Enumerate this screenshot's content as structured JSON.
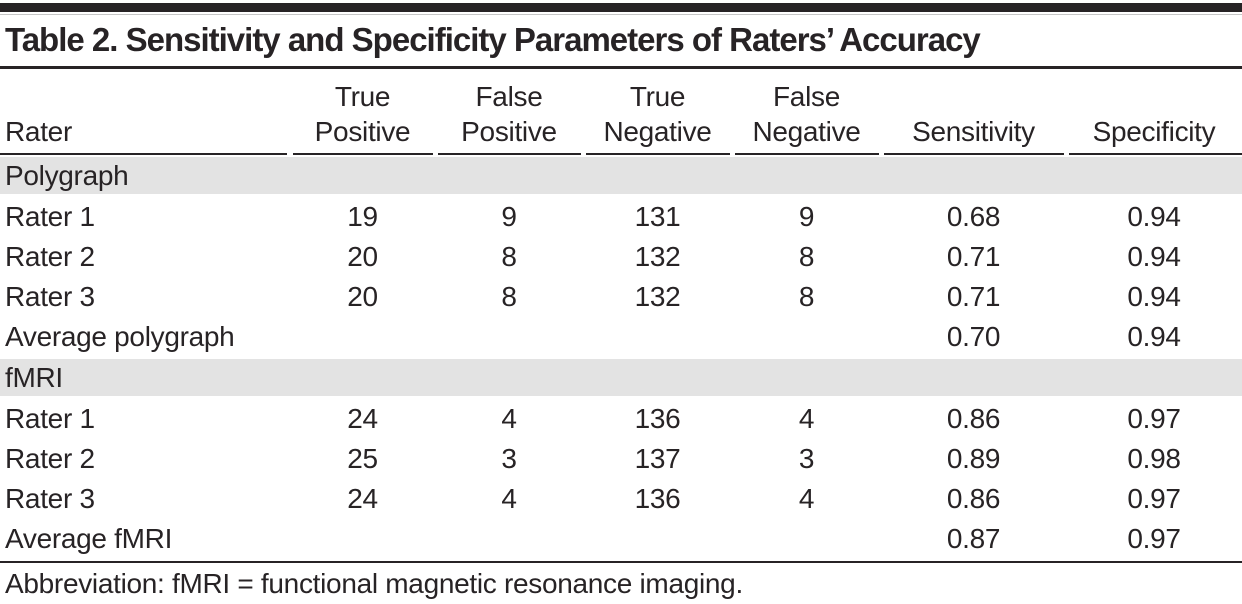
{
  "title": "Table 2. Sensitivity and Specificity Parameters of Raters’ Accuracy",
  "columns": {
    "rater": "Rater",
    "tp": "True\nPositive",
    "fp": "False\nPositive",
    "tn": "True\nNegative",
    "fn": "False\nNegative",
    "sensitivity": "Sensitivity",
    "specificity": "Specificity"
  },
  "sections": [
    {
      "label": "Polygraph",
      "rows": [
        {
          "rater": "Rater 1",
          "tp": "19",
          "fp": "9",
          "tn": "131",
          "fn": "9",
          "sensitivity": "0.68",
          "specificity": "0.94"
        },
        {
          "rater": "Rater 2",
          "tp": "20",
          "fp": "8",
          "tn": "132",
          "fn": "8",
          "sensitivity": "0.71",
          "specificity": "0.94"
        },
        {
          "rater": "Rater 3",
          "tp": "20",
          "fp": "8",
          "tn": "132",
          "fn": "8",
          "sensitivity": "0.71",
          "specificity": "0.94"
        },
        {
          "rater": "Average polygraph",
          "tp": "",
          "fp": "",
          "tn": "",
          "fn": "",
          "sensitivity": "0.70",
          "specificity": "0.94"
        }
      ]
    },
    {
      "label": "fMRI",
      "rows": [
        {
          "rater": "Rater 1",
          "tp": "24",
          "fp": "4",
          "tn": "136",
          "fn": "4",
          "sensitivity": "0.86",
          "specificity": "0.97"
        },
        {
          "rater": "Rater 2",
          "tp": "25",
          "fp": "3",
          "tn": "137",
          "fn": "3",
          "sensitivity": "0.89",
          "specificity": "0.98"
        },
        {
          "rater": "Rater 3",
          "tp": "24",
          "fp": "4",
          "tn": "136",
          "fn": "4",
          "sensitivity": "0.86",
          "specificity": "0.97"
        },
        {
          "rater": "Average fMRI",
          "tp": "",
          "fp": "",
          "tn": "",
          "fn": "",
          "sensitivity": "0.87",
          "specificity": "0.97"
        }
      ]
    }
  ],
  "footnote": "Abbreviation: fMRI = functional magnetic resonance imaging.",
  "colors": {
    "text": "#272325",
    "rule": "#272325",
    "section_band": "#e3e3e3"
  }
}
